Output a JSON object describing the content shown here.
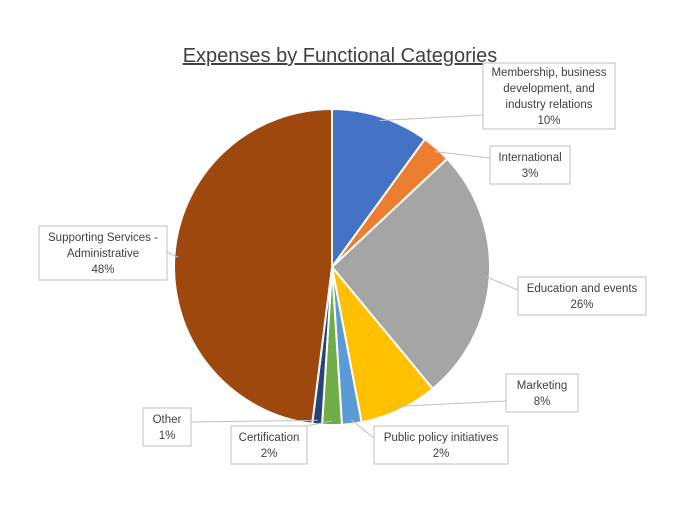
{
  "chart_data": {
    "type": "pie",
    "title": "Expenses by Functional Categories",
    "start_angle_deg": 0,
    "direction": "clockwise",
    "slices": [
      {
        "label_lines": [
          "Membership, business",
          "development, and",
          "industry relations"
        ],
        "value": 10,
        "value_label": "10%",
        "color": "#4472C4"
      },
      {
        "label_lines": [
          "International"
        ],
        "value": 3,
        "value_label": "3%",
        "color": "#ED7D31"
      },
      {
        "label_lines": [
          "Education and events"
        ],
        "value": 26,
        "value_label": "26%",
        "color": "#A5A5A5"
      },
      {
        "label_lines": [
          "Marketing"
        ],
        "value": 8,
        "value_label": "8%",
        "color": "#FFC000"
      },
      {
        "label_lines": [
          "Public policy initiatives"
        ],
        "value": 2,
        "value_label": "2%",
        "color": "#5B9BD5"
      },
      {
        "label_lines": [
          "Certification"
        ],
        "value": 2,
        "value_label": "2%",
        "color": "#70AD47"
      },
      {
        "label_lines": [
          "Other"
        ],
        "value": 1,
        "value_label": "1%",
        "color": "#264478"
      },
      {
        "label_lines": [
          "Supporting Services -",
          "Administrative"
        ],
        "value": 48,
        "value_label": "48%",
        "color": "#9E480E"
      }
    ]
  }
}
